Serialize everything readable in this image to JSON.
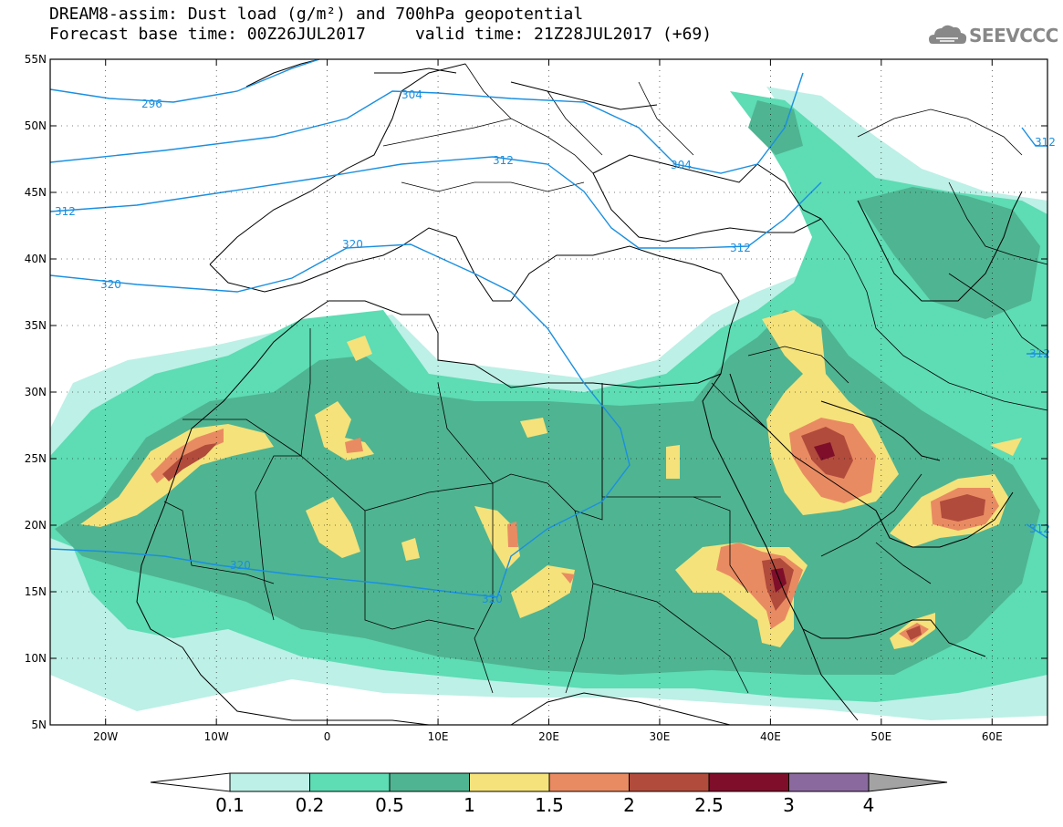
{
  "header": {
    "title_line1": "DREAM8-assim: Dust load (g/m²) and 700hPa geopotential",
    "title_line2": "Forecast base time: 00Z26JUL2017     valid time: 21Z28JUL2017 (+69)",
    "logo_text": "SEEVCCC",
    "logo_icon": "cloud-icon"
  },
  "map": {
    "lon_ticks": [
      "20W",
      "10W",
      "0",
      "10E",
      "20E",
      "30E",
      "40E",
      "50E",
      "60E"
    ],
    "lat_ticks": [
      "55N",
      "50N",
      "45N",
      "40N",
      "35N",
      "30N",
      "25N",
      "20N",
      "15N",
      "10N",
      "5N"
    ],
    "lon_range": [
      -25,
      65
    ],
    "lat_range": [
      5,
      55
    ],
    "contour_labels": [
      "296",
      "304",
      "312",
      "312",
      "304",
      "312",
      "320",
      "320",
      "320",
      "320",
      "312",
      "312",
      "312"
    ]
  },
  "legend": {
    "labels": [
      "0.1",
      "0.2",
      "0.5",
      "1",
      "1.5",
      "2",
      "2.5",
      "3",
      "4"
    ],
    "colors": [
      "#ffffff",
      "#bdf0e6",
      "#5edcb4",
      "#4fb491",
      "#f5e27a",
      "#e98b62",
      "#b14b3c",
      "#7e0e2a",
      "#8a6a9e",
      "#a3a3a3"
    ]
  }
}
